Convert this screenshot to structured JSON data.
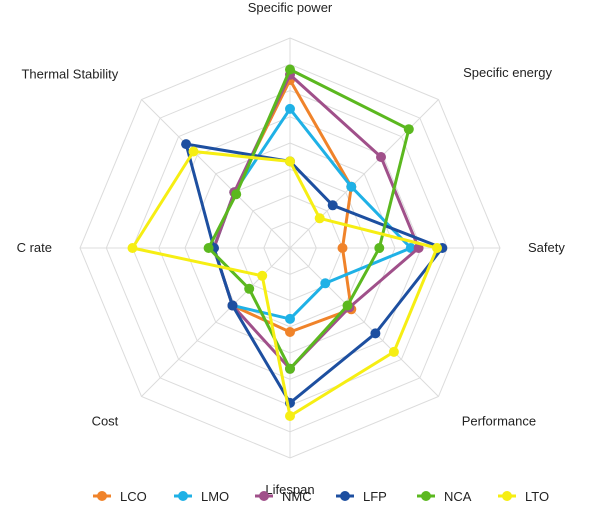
{
  "chart_data": {
    "type": "radar",
    "axes": [
      "Specific power",
      "Specific energy",
      "Safety",
      "Performance",
      "Lifespan",
      "Cost",
      "C rate",
      "Thermal Stability"
    ],
    "r_max": 4,
    "grid_levels": 8,
    "grid": true,
    "legend_position": "bottom",
    "series": [
      {
        "name": "LCO",
        "color": "#f0832a",
        "values": [
          3.2,
          1.65,
          1.0,
          1.65,
          1.6,
          1.55,
          1.45,
          1.5
        ]
      },
      {
        "name": "LMO",
        "color": "#1fb1e6",
        "values": [
          2.65,
          1.65,
          2.3,
          0.95,
          1.35,
          1.55,
          1.45,
          1.5
        ]
      },
      {
        "name": "NMC",
        "color": "#a0508a",
        "values": [
          3.3,
          2.45,
          2.45,
          1.6,
          2.3,
          1.55,
          1.45,
          1.5
        ]
      },
      {
        "name": "LFP",
        "color": "#1d4fa0",
        "values": [
          1.65,
          1.15,
          2.9,
          2.3,
          2.95,
          1.55,
          1.45,
          2.8
        ]
      },
      {
        "name": "NCA",
        "color": "#5bb81f",
        "values": [
          3.4,
          3.2,
          1.7,
          1.55,
          2.3,
          1.1,
          1.55,
          1.45
        ]
      },
      {
        "name": "LTO",
        "color": "#f6ee13",
        "values": [
          1.65,
          0.8,
          2.8,
          2.8,
          3.2,
          0.75,
          3.0,
          2.6
        ]
      }
    ]
  }
}
